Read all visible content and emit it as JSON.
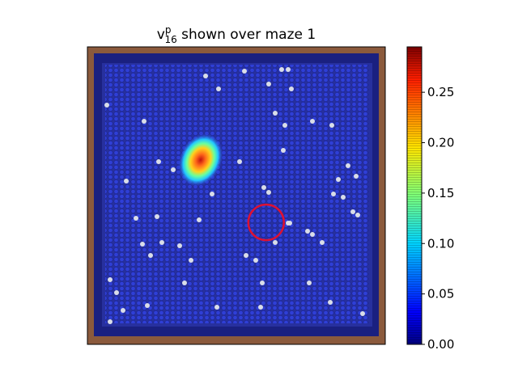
{
  "chart_data": {
    "type": "heatmap",
    "title": {
      "var": "v",
      "sup": "p",
      "sub": "16",
      "rest": " shown over maze 1"
    },
    "xlabel": "",
    "ylabel": "",
    "colormap": "jet",
    "colorbar": {
      "min": 0.0,
      "max": 0.295,
      "ticks": [
        "0.00",
        "0.05",
        "0.10",
        "0.15",
        "0.20",
        "0.25"
      ],
      "tick_values": [
        0.0,
        0.05,
        0.1,
        0.15,
        0.2,
        0.25
      ]
    },
    "background_value": 0.005,
    "hotspot": {
      "x": 0.38,
      "y": 0.62,
      "peak": 0.27
    },
    "marker": {
      "shape": "circle",
      "color": "#dd1133",
      "x": 0.6,
      "y": 0.41
    },
    "wall_color": "#8b5a3c",
    "axes_visible": false,
    "grid": false
  }
}
